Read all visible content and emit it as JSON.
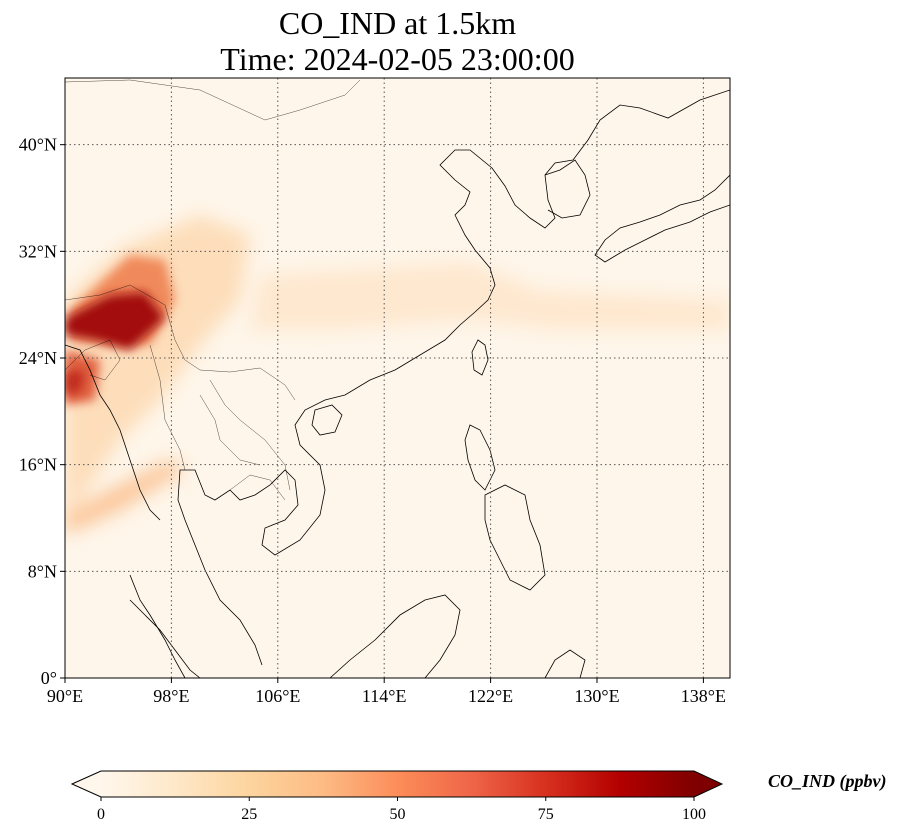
{
  "title": {
    "line1": "CO_IND at 1.5km",
    "line2": "Time: 2024-02-05 23:00:00"
  },
  "map": {
    "lon_range": [
      90,
      140
    ],
    "lat_range": [
      0,
      45
    ],
    "lon_ticks": [
      {
        "value": 90,
        "label": "90°E"
      },
      {
        "value": 98,
        "label": "98°E"
      },
      {
        "value": 106,
        "label": "106°E"
      },
      {
        "value": 114,
        "label": "114°E"
      },
      {
        "value": 122,
        "label": "122°E"
      },
      {
        "value": 130,
        "label": "130°E"
      },
      {
        "value": 138,
        "label": "138°E"
      }
    ],
    "lat_ticks": [
      {
        "value": 0,
        "label": "0°"
      },
      {
        "value": 8,
        "label": "8°N"
      },
      {
        "value": 16,
        "label": "16°N"
      },
      {
        "value": 24,
        "label": "24°N"
      },
      {
        "value": 32,
        "label": "32°N"
      },
      {
        "value": 40,
        "label": "40°N"
      }
    ],
    "grid": true,
    "grid_style": "dotted",
    "background_color": "#fef6ea",
    "coastline_color": "#000000"
  },
  "colorbar": {
    "label": "CO_IND (ppbv)",
    "colormap": "OrRd",
    "colors": [
      "#fff7ec",
      "#fee8c8",
      "#fdd49e",
      "#fdbb84",
      "#fc8d59",
      "#ef6548",
      "#d7301f",
      "#b30000",
      "#7f0000"
    ],
    "range": [
      0,
      100
    ],
    "extend": "both",
    "ticks": [
      {
        "value": 0,
        "label": "0"
      },
      {
        "value": 25,
        "label": "25"
      },
      {
        "value": 50,
        "label": "50"
      },
      {
        "value": 75,
        "label": "75"
      },
      {
        "value": 100,
        "label": "100"
      }
    ]
  }
}
